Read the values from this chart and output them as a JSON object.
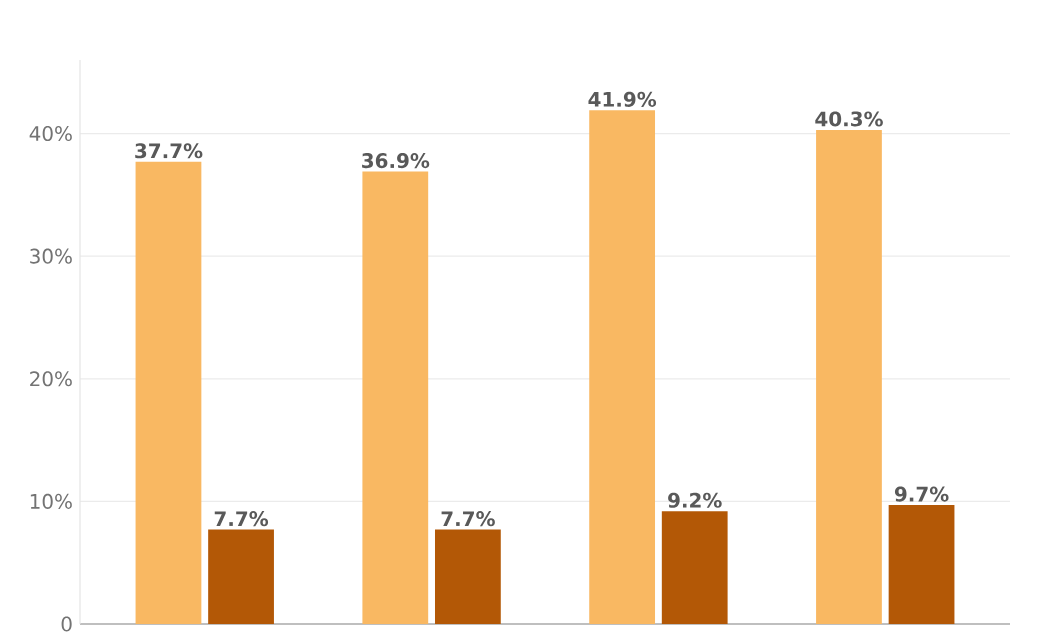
{
  "chart_data": {
    "type": "bar",
    "categories": [
      null,
      null,
      null,
      null
    ],
    "series": [
      {
        "color": "#f9b862",
        "values": [
          37.7,
          36.9,
          41.9,
          40.3
        ],
        "value_labels": [
          "37.7%",
          "36.9%",
          "41.9%",
          "40.3%"
        ]
      },
      {
        "color": "#b35806",
        "values": [
          7.7,
          7.7,
          9.2,
          9.7
        ],
        "value_labels": [
          "7.7%",
          "7.7%",
          "9.2%",
          "9.7%"
        ]
      }
    ],
    "ylim": [
      0,
      46
    ],
    "yticks": [
      0,
      {
        "value": 10,
        "label": "10%"
      },
      {
        "value": 20,
        "label": "20%"
      },
      {
        "value": 30,
        "label": "30%"
      },
      {
        "value": 40,
        "label": "40%"
      }
    ],
    "grid": "y",
    "tick_labels": "y"
  }
}
